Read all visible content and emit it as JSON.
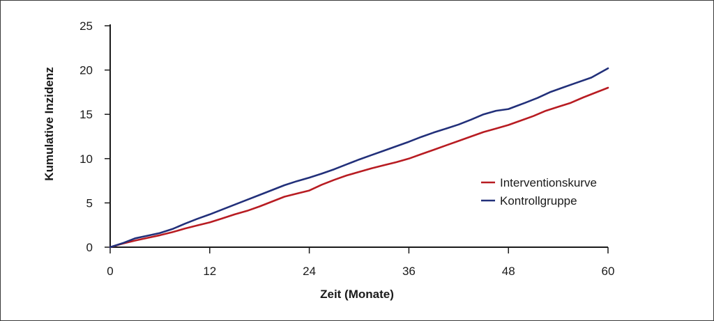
{
  "chart_data": {
    "type": "line",
    "title": "",
    "xlabel": "Zeit (Monate)",
    "ylabel": "Kumulative Inzidenz",
    "xlim": [
      0,
      60
    ],
    "ylim": [
      0,
      25
    ],
    "xticks": [
      0,
      12,
      24,
      36,
      48,
      60
    ],
    "yticks": [
      0,
      5,
      10,
      15,
      20,
      25
    ],
    "grid": false,
    "legend_position": "right",
    "series": [
      {
        "name": "Interventionskurve",
        "color": "#b81c22",
        "x": [
          0,
          1.5,
          3,
          4.5,
          6,
          7.5,
          9,
          10.5,
          12,
          13.5,
          15,
          16.5,
          18,
          19.5,
          21,
          22.5,
          24,
          25.5,
          27,
          28.5,
          30,
          31.5,
          33,
          34.5,
          36,
          37.5,
          39,
          40.5,
          42,
          43.5,
          45,
          46.5,
          48,
          49.5,
          51,
          52.5,
          54,
          55.5,
          57,
          58.5,
          60
        ],
        "y": [
          0,
          0.4,
          0.75,
          1.05,
          1.35,
          1.7,
          2.1,
          2.45,
          2.8,
          3.25,
          3.7,
          4.1,
          4.6,
          5.15,
          5.7,
          6.05,
          6.4,
          7.05,
          7.6,
          8.1,
          8.5,
          8.9,
          9.25,
          9.6,
          10.0,
          10.5,
          11.0,
          11.5,
          12.0,
          12.5,
          13.0,
          13.4,
          13.8,
          14.3,
          14.8,
          15.4,
          15.85,
          16.3,
          16.9,
          17.45,
          18.0
        ]
      },
      {
        "name": "Kontrollgruppe",
        "color": "#22307a",
        "x": [
          0,
          1.5,
          3,
          4.5,
          6,
          7.5,
          9,
          10.5,
          12,
          13.5,
          15,
          16.5,
          18,
          19.5,
          21,
          22.5,
          24,
          25.5,
          27,
          28.5,
          30,
          31.5,
          33,
          34.5,
          36,
          37.5,
          39,
          40.5,
          42,
          43.5,
          45,
          46.5,
          48,
          49,
          50,
          51.5,
          53,
          54.5,
          56,
          58,
          60
        ],
        "y": [
          0,
          0.45,
          1.0,
          1.3,
          1.6,
          2.05,
          2.65,
          3.2,
          3.7,
          4.25,
          4.8,
          5.35,
          5.9,
          6.45,
          7.0,
          7.45,
          7.85,
          8.3,
          8.8,
          9.35,
          9.9,
          10.4,
          10.9,
          11.4,
          11.9,
          12.45,
          12.95,
          13.4,
          13.85,
          14.4,
          15.0,
          15.4,
          15.6,
          15.95,
          16.3,
          16.85,
          17.5,
          18.0,
          18.5,
          19.15,
          20.2
        ]
      }
    ]
  }
}
